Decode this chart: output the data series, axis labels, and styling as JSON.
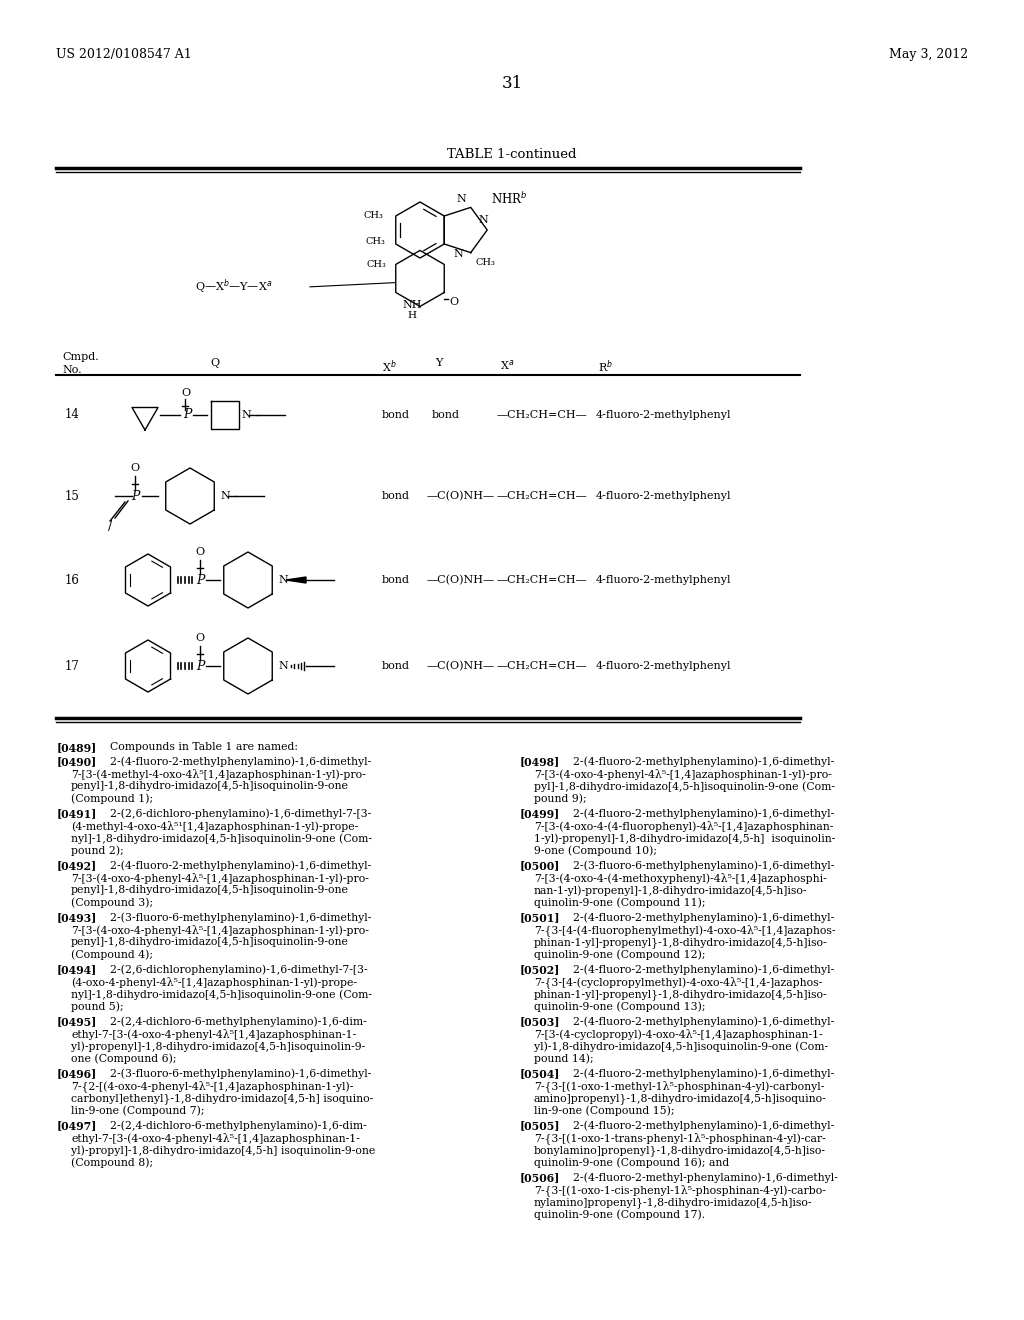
{
  "bg": "#ffffff",
  "header_left": "US 2012/0108547 A1",
  "header_right": "May 3, 2012",
  "page_num": "31",
  "table_title": "TABLE 1-continued"
}
